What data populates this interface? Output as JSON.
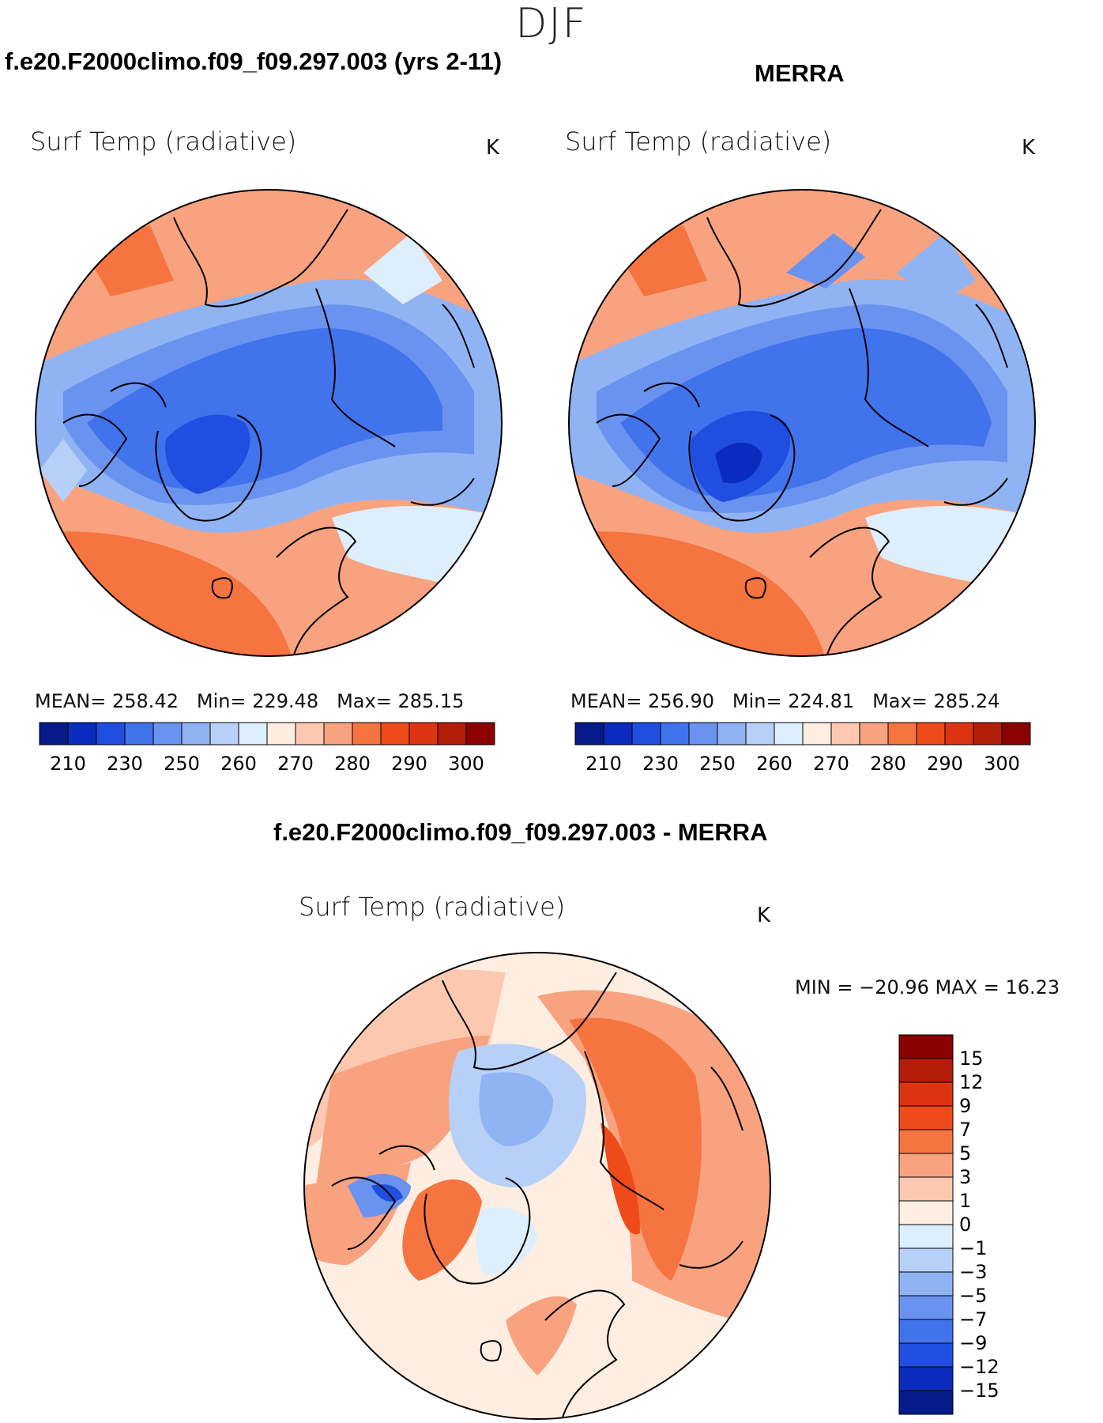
{
  "season": "DJF",
  "panels": [
    {
      "title": "f.e20.F2000climo.f09_f09.297.003 (yrs 2-11)",
      "variable": "Surf Temp (radiative)",
      "units": "K",
      "mean_label": "MEAN=",
      "mean_value": "258.42",
      "min_label": "Min=",
      "min_value": "229.48",
      "max_label": "Max=",
      "max_value": "285.15"
    },
    {
      "title": "MERRA",
      "variable": "Surf Temp (radiative)",
      "units": "K",
      "mean_label": "MEAN=",
      "mean_value": "256.90",
      "min_label": "Min=",
      "min_value": "224.81",
      "max_label": "Max=",
      "max_value": "285.24"
    }
  ],
  "diff": {
    "title": "f.e20.F2000climo.f09_f09.297.003 - MERRA",
    "variable": "Surf Temp (radiative)",
    "units": "K",
    "minmax": "MIN = −20.96 MAX =   16.23",
    "colorbar_labels": [
      "15",
      "12",
      "9",
      "7",
      "5",
      "3",
      "1",
      "0",
      "−1",
      "−3",
      "−5",
      "−7",
      "−9",
      "−12",
      "−15"
    ],
    "colorbar_colors": [
      "#8b0000",
      "#b41d0a",
      "#dc3411",
      "#ee4a1a",
      "#f5743f",
      "#f9a27f",
      "#fcc9b0",
      "#feeee2",
      "#ddeefc",
      "#b7d0f7",
      "#90b4f3",
      "#6a92ef",
      "#4173ec",
      "#1f4ee0",
      "#0a2bbd",
      "#061a8a"
    ]
  },
  "abs_colorbar": {
    "labels": [
      "210",
      "230",
      "250",
      "260",
      "270",
      "280",
      "290",
      "300"
    ],
    "colors": [
      "#061a8a",
      "#0a2bbd",
      "#1f4ee0",
      "#4173ec",
      "#6a92ef",
      "#90b4f3",
      "#b7d0f7",
      "#ddeefc",
      "#feeee2",
      "#fcc9b0",
      "#f9a27f",
      "#f5743f",
      "#ee4a1a",
      "#dc3411",
      "#b41d0a",
      "#8b0000"
    ]
  },
  "colors": {
    "land_line": "#000000",
    "cold": "#3d6fe6",
    "warm": "#f5743f"
  }
}
